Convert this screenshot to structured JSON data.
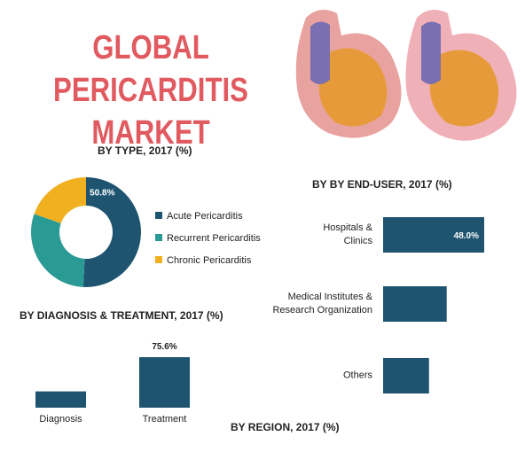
{
  "title": "GLOBAL PERICARDITIS MARKET",
  "chart_data": [
    {
      "type": "donut",
      "title": "BY TYPE, 2017 (%)",
      "categories": [
        "Acute Pericarditis",
        "Recurrent Pericarditis",
        "Chronic Pericarditis"
      ],
      "values": [
        50.8,
        29.6,
        19.6
      ],
      "value_labels": [
        "50.8%",
        null,
        null
      ],
      "colors": [
        "#1e5470",
        "#2a9a94",
        "#f0b020"
      ]
    },
    {
      "type": "hbar",
      "title": "BY BY END-USER, 2017 (%)",
      "categories": [
        "Hospitals & Clinics",
        "Medical Institutes & Research Organization",
        "Others"
      ],
      "values": [
        48.0,
        30.2,
        21.8
      ],
      "value_labels": [
        "48.0%",
        null,
        null
      ],
      "color": "#1e5470"
    },
    {
      "type": "bar",
      "title": "BY DIAGNOSIS & TREATMENT, 2017 (%)",
      "categories": [
        "Diagnosis",
        "Treatment"
      ],
      "values": [
        24.4,
        75.6
      ],
      "value_labels": [
        null,
        "75.6%"
      ],
      "color": "#1e5470"
    },
    {
      "type": "none",
      "title": "BY REGION, 2017 (%)"
    }
  ]
}
